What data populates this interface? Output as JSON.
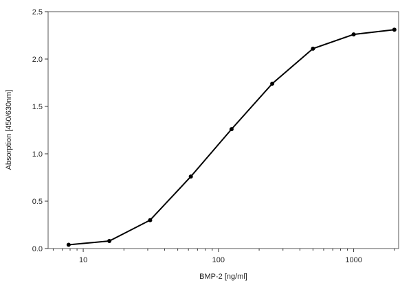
{
  "chart_data": {
    "type": "line",
    "title": "",
    "xlabel": "BMP-2 [ng/ml]",
    "ylabel": "Absorption [450/630nm]",
    "xscale": "log",
    "xlim": [
      5.5,
      2150
    ],
    "ylim": [
      0.0,
      2.5
    ],
    "x_ticks": [
      {
        "value": 10,
        "label": "10"
      },
      {
        "value": 100,
        "label": "100"
      },
      {
        "value": 1000,
        "label": "1000"
      }
    ],
    "y_ticks": [
      {
        "value": 0.0,
        "label": "0.0"
      },
      {
        "value": 0.5,
        "label": "0.5"
      },
      {
        "value": 1.0,
        "label": "1.0"
      },
      {
        "value": 1.5,
        "label": "1.5"
      },
      {
        "value": 2.0,
        "label": "2.0"
      },
      {
        "value": 2.5,
        "label": "2.5"
      }
    ],
    "grid": false,
    "legend": "none",
    "series": [
      {
        "x": [
          7.8,
          15.6,
          31.25,
          62.5,
          125,
          250,
          500,
          1000,
          2000
        ],
        "y": [
          0.04,
          0.08,
          0.3,
          0.76,
          1.26,
          1.74,
          2.11,
          2.26,
          2.31
        ]
      }
    ],
    "line_color": "#000000"
  }
}
